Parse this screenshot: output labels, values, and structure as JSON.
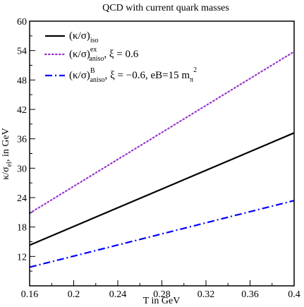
{
  "chart_data": {
    "type": "line",
    "title": "QCD with current quark masses",
    "xlabel": "T in GeV",
    "ylabel": {
      "main": "κ/σ",
      "sub": "el",
      "rest": ", in GeV"
    },
    "xlim": [
      0.16,
      0.4
    ],
    "ylim": [
      6,
      60
    ],
    "xticks": [
      "0.16",
      "0.2",
      "0.24",
      "0.28",
      "0.32",
      "0.36",
      "0.4"
    ],
    "yticks": [
      "12",
      "18",
      "24",
      "30",
      "36",
      "42",
      "48",
      "54",
      "60"
    ],
    "legend_position": "top-left",
    "series": [
      {
        "name": "(κ/σ)iso",
        "legend": {
          "main": "(κ/σ)",
          "sup": "",
          "sub": "iso",
          "rest": ""
        },
        "color": "#000000",
        "style": "solid",
        "x": [
          0.16,
          0.4
        ],
        "y": [
          14.3,
          37.2
        ]
      },
      {
        "name": "(κ/σ)ex aniso, ξ = 0.6",
        "legend": {
          "main": "(κ/σ)",
          "sup": "ex",
          "sub": "aniso",
          "rest": ", ξ = 0.6"
        },
        "color": "#9933cc",
        "style": "dotted",
        "x": [
          0.16,
          0.4
        ],
        "y": [
          20.8,
          53.8
        ]
      },
      {
        "name": "(κ/σ)B aniso, ξ = −0.6, eB=15 mπ2",
        "legend": {
          "main": "(κ/σ)",
          "sup": "B",
          "sub": "aniso",
          "rest": ", ξ = −0.6, eB=15 m",
          "sub2": "π",
          "sup2": "2"
        },
        "color": "#0000ff",
        "style": "dashdot",
        "x": [
          0.16,
          0.4
        ],
        "y": [
          9.8,
          23.4
        ]
      }
    ]
  }
}
